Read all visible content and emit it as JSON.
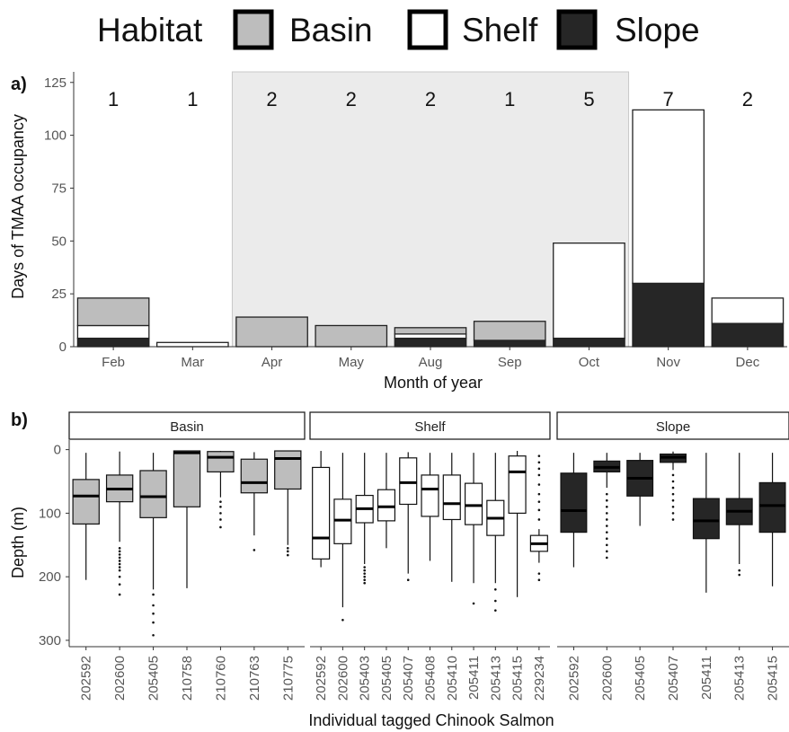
{
  "colors": {
    "Basin": "#bdbdbd",
    "Shelf": "#ffffff",
    "Slope": "#262626",
    "season_shade": "#ebebeb",
    "axis": "#555555"
  },
  "legend": {
    "title": "Habitat",
    "items": [
      "Basin",
      "Shelf",
      "Slope"
    ]
  },
  "panel_a_tag": "a)",
  "panel_b_tag": "b)",
  "chart_data": [
    {
      "type": "bar",
      "stacked": true,
      "categories": [
        "Feb",
        "Mar",
        "Apr",
        "May",
        "Aug",
        "Sep",
        "Oct",
        "Nov",
        "Dec"
      ],
      "series": [
        {
          "name": "Slope",
          "values": [
            4,
            0,
            0,
            0,
            4,
            3,
            4,
            30,
            11
          ]
        },
        {
          "name": "Shelf",
          "values": [
            6,
            2,
            0,
            0,
            2,
            0,
            45,
            82,
            12
          ]
        },
        {
          "name": "Basin",
          "values": [
            13,
            0,
            14,
            10,
            3,
            9,
            0,
            0,
            0
          ]
        }
      ],
      "counts": [
        "1",
        "1",
        "2",
        "2",
        "2",
        "1",
        "5",
        "7",
        "2"
      ],
      "shaded_range": [
        "Apr",
        "Oct"
      ],
      "xlabel": "Month of year",
      "ylabel": "Days of TMAA occupancy",
      "ylim": [
        0,
        130
      ],
      "yticks": [
        0,
        25,
        50,
        75,
        100,
        125
      ]
    },
    {
      "type": "box",
      "ylabel": "Depth (m)",
      "xlabel": "Individual tagged Chinook Salmon",
      "ylim": [
        310,
        -15
      ],
      "yticks": [
        0,
        100,
        200,
        300
      ],
      "facets": [
        {
          "name": "Basin",
          "boxes": [
            {
              "label": "202592",
              "min": 5,
              "q1": 47,
              "median": 73,
              "q3": 117,
              "max": 205,
              "outliers": []
            },
            {
              "label": "202600",
              "min": 3,
              "q1": 40,
              "median": 62,
              "q3": 82,
              "max": 145,
              "outliers": [
                155,
                160,
                165,
                170,
                175,
                180,
                185,
                190,
                200,
                212,
                228
              ]
            },
            {
              "label": "205405",
              "min": 5,
              "q1": 33,
              "median": 74,
              "q3": 107,
              "max": 220,
              "outliers": [
                228,
                245,
                258,
                272,
                292
              ]
            },
            {
              "label": "210758",
              "min": 2,
              "q1": 2,
              "median": 5,
              "q3": 90,
              "max": 218,
              "outliers": []
            },
            {
              "label": "210760",
              "min": 2,
              "q1": 3,
              "median": 12,
              "q3": 35,
              "max": 75,
              "outliers": [
                82,
                90,
                100,
                110,
                122
              ]
            },
            {
              "label": "210763",
              "min": 4,
              "q1": 15,
              "median": 52,
              "q3": 68,
              "max": 135,
              "outliers": [
                158
              ]
            },
            {
              "label": "210775",
              "min": 2,
              "q1": 2,
              "median": 14,
              "q3": 62,
              "max": 150,
              "outliers": [
                155,
                160,
                166
              ]
            }
          ]
        },
        {
          "name": "Shelf",
          "boxes": [
            {
              "label": "202592",
              "min": 2,
              "q1": 28,
              "median": 139,
              "q3": 172,
              "max": 185,
              "outliers": []
            },
            {
              "label": "202600",
              "min": 5,
              "q1": 78,
              "median": 111,
              "q3": 148,
              "max": 248,
              "outliers": [
                268
              ]
            },
            {
              "label": "205403",
              "min": 5,
              "q1": 72,
              "median": 93,
              "q3": 115,
              "max": 180,
              "outliers": [
                185,
                190,
                195,
                200,
                205,
                210
              ]
            },
            {
              "label": "205405",
              "min": 5,
              "q1": 63,
              "median": 90,
              "q3": 112,
              "max": 155,
              "outliers": []
            },
            {
              "label": "205407",
              "min": 4,
              "q1": 13,
              "median": 52,
              "q3": 86,
              "max": 195,
              "outliers": [
                205
              ]
            },
            {
              "label": "205408",
              "min": 5,
              "q1": 40,
              "median": 62,
              "q3": 105,
              "max": 175,
              "outliers": []
            },
            {
              "label": "205410",
              "min": 5,
              "q1": 40,
              "median": 85,
              "q3": 110,
              "max": 208,
              "outliers": []
            },
            {
              "label": "205411",
              "min": 5,
              "q1": 53,
              "median": 88,
              "q3": 118,
              "max": 210,
              "outliers": [
                242
              ]
            },
            {
              "label": "205413",
              "min": 5,
              "q1": 80,
              "median": 108,
              "q3": 135,
              "max": 210,
              "outliers": [
                220,
                238,
                253
              ]
            },
            {
              "label": "205415",
              "min": 2,
              "q1": 10,
              "median": 35,
              "q3": 100,
              "max": 232,
              "outliers": []
            },
            {
              "label": "229234",
              "min": 125,
              "q1": 135,
              "median": 148,
              "q3": 160,
              "max": 178,
              "outliers": [
                10,
                20,
                30,
                40,
                55,
                70,
                82,
                95,
                110,
                195,
                205
              ]
            }
          ]
        },
        {
          "name": "Slope",
          "boxes": [
            {
              "label": "202592",
              "min": 5,
              "q1": 37,
              "median": 96,
              "q3": 130,
              "max": 185,
              "outliers": []
            },
            {
              "label": "202600",
              "min": 5,
              "q1": 18,
              "median": 28,
              "q3": 35,
              "max": 60,
              "outliers": [
                70,
                80,
                90,
                100,
                110,
                120,
                130,
                140,
                150,
                160,
                170
              ]
            },
            {
              "label": "205405",
              "min": 5,
              "q1": 17,
              "median": 45,
              "q3": 73,
              "max": 120,
              "outliers": []
            },
            {
              "label": "205407",
              "min": 3,
              "q1": 7,
              "median": 12,
              "q3": 20,
              "max": 32,
              "outliers": [
                40,
                50,
                60,
                70,
                80,
                90,
                100,
                110
              ]
            },
            {
              "label": "205411",
              "min": 5,
              "q1": 77,
              "median": 112,
              "q3": 140,
              "max": 225,
              "outliers": []
            },
            {
              "label": "205413",
              "min": 5,
              "q1": 77,
              "median": 97,
              "q3": 118,
              "max": 180,
              "outliers": [
                190,
                197
              ]
            },
            {
              "label": "205415",
              "min": 5,
              "q1": 52,
              "median": 88,
              "q3": 130,
              "max": 215,
              "outliers": []
            }
          ]
        }
      ]
    }
  ]
}
